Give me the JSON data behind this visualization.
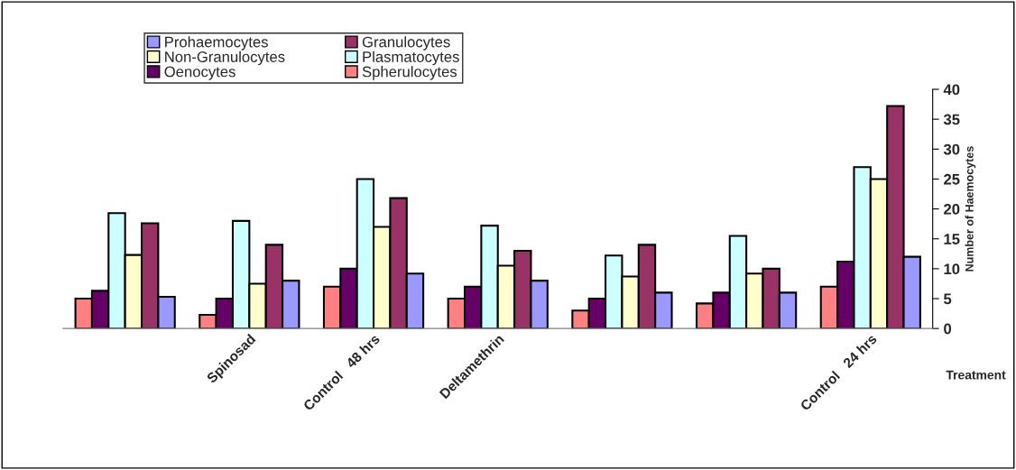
{
  "chart_data": {
    "type": "bar",
    "categories": [
      null,
      "Spinosad",
      "Control   48 hrs",
      "Deltamethrin",
      null,
      null,
      "Control   24 hrs"
    ],
    "series": [
      {
        "name": "Spherulocytes",
        "color": "#ff8080",
        "values": [
          5,
          2.3,
          7,
          5,
          3,
          4.2,
          7
        ]
      },
      {
        "name": "Oenocytes",
        "color": "#660066",
        "values": [
          6.3,
          5,
          10,
          7,
          5,
          6,
          11.2
        ]
      },
      {
        "name": "Plasmatocytes",
        "color": "#ccffff",
        "values": [
          19.3,
          18,
          25,
          17.2,
          12.2,
          15.5,
          27
        ]
      },
      {
        "name": "Non-Granulocytes",
        "color": "#ffffcc",
        "values": [
          12.3,
          7.5,
          17,
          10.5,
          8.7,
          9.2,
          25
        ]
      },
      {
        "name": "Granulocytes",
        "color": "#993366",
        "values": [
          17.6,
          14,
          21.8,
          13,
          14,
          10,
          37.2
        ]
      },
      {
        "name": "Prohaemocytes",
        "color": "#9999ff",
        "values": [
          5.3,
          8,
          9.2,
          8,
          6,
          6,
          12
        ]
      }
    ],
    "xlabel": "Treatment",
    "ylabel": "Number of Haemocytes",
    "ylim": [
      0,
      40
    ],
    "yticks": [
      0,
      5,
      10,
      15,
      20,
      25,
      30,
      35,
      40
    ],
    "grid": false,
    "legend": "top left"
  }
}
